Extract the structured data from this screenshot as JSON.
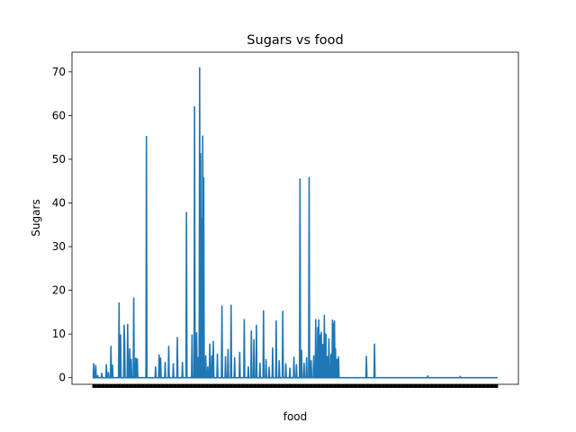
{
  "chart_data": {
    "type": "line",
    "title": "Sugars vs food",
    "xlabel": "food",
    "ylabel": "Sugars",
    "ylim": [
      -1.5,
      74.5
    ],
    "yticks": [
      0,
      10,
      20,
      30,
      40,
      50,
      60,
      70
    ],
    "x_count": 800,
    "color": "#1f77b4",
    "spikes": [
      [
        2,
        3.2
      ],
      [
        6,
        2.8
      ],
      [
        10,
        0.5
      ],
      [
        18,
        1.0
      ],
      [
        27,
        3.0
      ],
      [
        31,
        1.2
      ],
      [
        36,
        7.2
      ],
      [
        39,
        2.9
      ],
      [
        52,
        17.1
      ],
      [
        55,
        9.8
      ],
      [
        62,
        12.0
      ],
      [
        63,
        8.0
      ],
      [
        69,
        12.2
      ],
      [
        73,
        6.6
      ],
      [
        76,
        4.2
      ],
      [
        81,
        18.2
      ],
      [
        85,
        4.5
      ],
      [
        88,
        4.3
      ],
      [
        106,
        55.2
      ],
      [
        124,
        2.5
      ],
      [
        131,
        5.2
      ],
      [
        134,
        4.5
      ],
      [
        143,
        3.5
      ],
      [
        150,
        7.2
      ],
      [
        159,
        3.2
      ],
      [
        167,
        9.2
      ],
      [
        177,
        3.5
      ],
      [
        185,
        37.8
      ],
      [
        196,
        9.8
      ],
      [
        201,
        62.0
      ],
      [
        205,
        10.3
      ],
      [
        208,
        4.6
      ],
      [
        211,
        70.9
      ],
      [
        213,
        51.3
      ],
      [
        215,
        36.4
      ],
      [
        217,
        55.3
      ],
      [
        219,
        45.7
      ],
      [
        223,
        5.0
      ],
      [
        227,
        2.5
      ],
      [
        231,
        7.7
      ],
      [
        235,
        5.0
      ],
      [
        238,
        8.3
      ],
      [
        246,
        5.4
      ],
      [
        255,
        16.4
      ],
      [
        262,
        4.8
      ],
      [
        267,
        6.5
      ],
      [
        273,
        16.6
      ],
      [
        280,
        4.6
      ],
      [
        290,
        5.8
      ],
      [
        299,
        13.3
      ],
      [
        307,
        2.5
      ],
      [
        313,
        10.7
      ],
      [
        318,
        8.7
      ],
      [
        323,
        12.0
      ],
      [
        330,
        3.3
      ],
      [
        337,
        15.3
      ],
      [
        342,
        4.2
      ],
      [
        348,
        2.4
      ],
      [
        355,
        6.8
      ],
      [
        362,
        13.0
      ],
      [
        368,
        3.9
      ],
      [
        375,
        15.2
      ],
      [
        381,
        3.2
      ],
      [
        389,
        2.2
      ],
      [
        397,
        4.7
      ],
      [
        402,
        3.0
      ],
      [
        409,
        45.5
      ],
      [
        412,
        6.3
      ],
      [
        417,
        3.3
      ],
      [
        422,
        4.6
      ],
      [
        427,
        45.8
      ],
      [
        431,
        3.9
      ],
      [
        436,
        5.0
      ],
      [
        440,
        13.3
      ],
      [
        444,
        11.5
      ],
      [
        446,
        13.2
      ],
      [
        449,
        9.8
      ],
      [
        451,
        10.4
      ],
      [
        454,
        7.6
      ],
      [
        457,
        14.3
      ],
      [
        460,
        10.0
      ],
      [
        463,
        4.8
      ],
      [
        466,
        8.9
      ],
      [
        470,
        5.3
      ],
      [
        473,
        13.2
      ],
      [
        475,
        12.4
      ],
      [
        477,
        13.0
      ],
      [
        479,
        6.6
      ],
      [
        482,
        4.2
      ],
      [
        485,
        4.8
      ],
      [
        540,
        4.9
      ],
      [
        556,
        7.7
      ],
      [
        661,
        0.4
      ],
      [
        725,
        0.3
      ]
    ]
  }
}
